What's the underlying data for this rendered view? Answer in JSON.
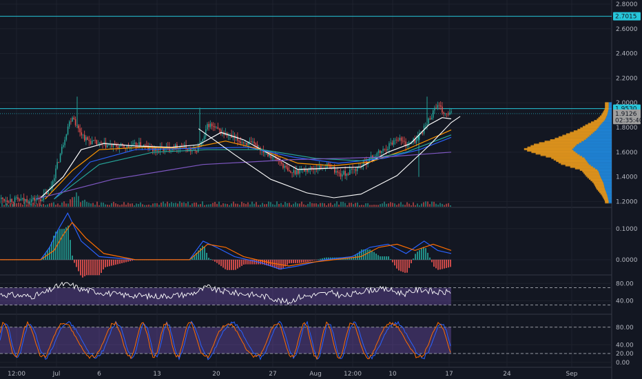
{
  "chart_data": [
    {
      "panel": "price",
      "type": "candlestick",
      "y_ticks": [
        "2.8000",
        "2.6000",
        "2.4000",
        "2.2000",
        "2.0000",
        "1.8000",
        "1.6000",
        "1.4000",
        "1.2000"
      ],
      "ylim": [
        1.18,
        2.8
      ],
      "x_ticks": [
        "12:00",
        "Jul",
        "6",
        "13",
        "20",
        "27",
        "Aug",
        "12:00",
        "10",
        "17",
        "24",
        "Sep"
      ],
      "horizontal_lines": [
        2.7015,
        1.953
      ],
      "price_tags": [
        {
          "label": "2.7015",
          "value": 2.7015,
          "color": "#26c6da"
        },
        {
          "label": "1.9530",
          "value": 1.953,
          "color": "#26c6da"
        },
        {
          "label": "1.9126",
          "value": 1.9126,
          "color": "#9e9e9e"
        },
        {
          "label": "02:35:40",
          "value": 1.86,
          "color": "#9e9e9e"
        }
      ],
      "price_path": [
        [
          0,
          1.22
        ],
        [
          0.05,
          1.21
        ],
        [
          0.09,
          1.22
        ],
        [
          0.11,
          1.3
        ],
        [
          0.13,
          1.55
        ],
        [
          0.15,
          1.82
        ],
        [
          0.16,
          1.9
        ],
        [
          0.17,
          1.8
        ],
        [
          0.19,
          1.7
        ],
        [
          0.22,
          1.66
        ],
        [
          0.25,
          1.65
        ],
        [
          0.28,
          1.64
        ],
        [
          0.31,
          1.66
        ],
        [
          0.34,
          1.62
        ],
        [
          0.37,
          1.63
        ],
        [
          0.4,
          1.65
        ],
        [
          0.43,
          1.6
        ],
        [
          0.45,
          1.7
        ],
        [
          0.46,
          1.83
        ],
        [
          0.48,
          1.78
        ],
        [
          0.5,
          1.74
        ],
        [
          0.53,
          1.69
        ],
        [
          0.56,
          1.66
        ],
        [
          0.59,
          1.6
        ],
        [
          0.62,
          1.52
        ],
        [
          0.64,
          1.43
        ],
        [
          0.66,
          1.45
        ],
        [
          0.7,
          1.47
        ],
        [
          0.73,
          1.49
        ],
        [
          0.75,
          1.42
        ],
        [
          0.77,
          1.43
        ],
        [
          0.79,
          1.47
        ],
        [
          0.82,
          1.55
        ],
        [
          0.85,
          1.62
        ],
        [
          0.88,
          1.72
        ],
        [
          0.9,
          1.66
        ],
        [
          0.92,
          1.7
        ],
        [
          0.94,
          1.8
        ],
        [
          0.955,
          1.9
        ],
        [
          0.965,
          1.98
        ],
        [
          0.975,
          1.95
        ],
        [
          0.985,
          1.9
        ],
        [
          1.0,
          1.91
        ]
      ],
      "moving_averages": [
        {
          "color": "#ffffff",
          "points": [
            [
              0.09,
              1.23
            ],
            [
              0.14,
              1.4
            ],
            [
              0.18,
              1.62
            ],
            [
              0.23,
              1.67
            ],
            [
              0.3,
              1.65
            ],
            [
              0.38,
              1.64
            ],
            [
              0.44,
              1.66
            ],
            [
              0.49,
              1.76
            ],
            [
              0.54,
              1.7
            ],
            [
              0.6,
              1.58
            ],
            [
              0.66,
              1.46
            ],
            [
              0.73,
              1.47
            ],
            [
              0.8,
              1.48
            ],
            [
              0.86,
              1.6
            ],
            [
              0.91,
              1.67
            ],
            [
              0.95,
              1.82
            ],
            [
              0.98,
              1.88
            ],
            [
              1.0,
              1.87
            ]
          ]
        },
        {
          "color": "#ff9800",
          "points": [
            [
              0.1,
              1.22
            ],
            [
              0.16,
              1.45
            ],
            [
              0.22,
              1.62
            ],
            [
              0.32,
              1.64
            ],
            [
              0.42,
              1.63
            ],
            [
              0.5,
              1.69
            ],
            [
              0.58,
              1.62
            ],
            [
              0.66,
              1.51
            ],
            [
              0.74,
              1.49
            ],
            [
              0.82,
              1.52
            ],
            [
              0.9,
              1.62
            ],
            [
              1.0,
              1.78
            ]
          ]
        },
        {
          "color": "#2962ff",
          "points": [
            [
              0.12,
              1.22
            ],
            [
              0.2,
              1.52
            ],
            [
              0.3,
              1.62
            ],
            [
              0.42,
              1.63
            ],
            [
              0.55,
              1.64
            ],
            [
              0.65,
              1.56
            ],
            [
              0.75,
              1.51
            ],
            [
              0.85,
              1.55
            ],
            [
              0.93,
              1.62
            ],
            [
              1.0,
              1.72
            ]
          ]
        },
        {
          "color": "#26a69a",
          "points": [
            [
              0.12,
              1.22
            ],
            [
              0.22,
              1.5
            ],
            [
              0.34,
              1.6
            ],
            [
              0.46,
              1.62
            ],
            [
              0.58,
              1.62
            ],
            [
              0.7,
              1.55
            ],
            [
              0.8,
              1.53
            ],
            [
              0.9,
              1.6
            ],
            [
              1.0,
              1.74
            ]
          ]
        },
        {
          "color": "#7e57c2",
          "points": [
            [
              0.08,
              1.22
            ],
            [
              0.25,
              1.38
            ],
            [
              0.45,
              1.5
            ],
            [
              0.65,
              1.54
            ],
            [
              0.85,
              1.56
            ],
            [
              1.0,
              1.6
            ]
          ]
        }
      ],
      "cup_curve": [
        [
          0.44,
          1.79
        ],
        [
          0.52,
          1.58
        ],
        [
          0.6,
          1.38
        ],
        [
          0.68,
          1.27
        ],
        [
          0.74,
          1.23
        ],
        [
          0.8,
          1.26
        ],
        [
          0.88,
          1.41
        ],
        [
          0.95,
          1.65
        ],
        [
          1.0,
          1.84
        ],
        [
          1.02,
          1.89
        ]
      ],
      "volume_profile": [
        [
          1.2,
          8
        ],
        [
          1.25,
          12
        ],
        [
          1.3,
          18
        ],
        [
          1.35,
          22
        ],
        [
          1.4,
          30
        ],
        [
          1.45,
          36
        ],
        [
          1.5,
          60
        ],
        [
          1.55,
          72
        ],
        [
          1.58,
          88
        ],
        [
          1.62,
          105
        ],
        [
          1.66,
          92
        ],
        [
          1.7,
          70
        ],
        [
          1.74,
          55
        ],
        [
          1.78,
          40
        ],
        [
          1.82,
          30
        ],
        [
          1.86,
          18
        ],
        [
          1.9,
          12
        ],
        [
          1.95,
          8
        ]
      ]
    },
    {
      "panel": "macd",
      "type": "line",
      "y_ticks": [
        "0.1000",
        "0.0000"
      ],
      "ylim": [
        -0.04,
        0.155
      ],
      "series": [
        {
          "color": "#2962ff",
          "points": [
            [
              0,
              0.0
            ],
            [
              0.09,
              0.0
            ],
            [
              0.11,
              0.04
            ],
            [
              0.13,
              0.1
            ],
            [
              0.15,
              0.15
            ],
            [
              0.18,
              0.06
            ],
            [
              0.22,
              0.01
            ],
            [
              0.3,
              0.0
            ],
            [
              0.42,
              0.0
            ],
            [
              0.45,
              0.06
            ],
            [
              0.48,
              0.04
            ],
            [
              0.52,
              0.01
            ],
            [
              0.58,
              -0.01
            ],
            [
              0.62,
              -0.03
            ],
            [
              0.66,
              -0.02
            ],
            [
              0.72,
              0.0
            ],
            [
              0.78,
              0.01
            ],
            [
              0.82,
              0.04
            ],
            [
              0.86,
              0.05
            ],
            [
              0.9,
              0.02
            ],
            [
              0.94,
              0.06
            ],
            [
              0.97,
              0.03
            ],
            [
              1.0,
              0.02
            ]
          ]
        },
        {
          "color": "#ff6d00",
          "points": [
            [
              0,
              0.0
            ],
            [
              0.09,
              0.0
            ],
            [
              0.12,
              0.03
            ],
            [
              0.14,
              0.08
            ],
            [
              0.16,
              0.12
            ],
            [
              0.19,
              0.07
            ],
            [
              0.23,
              0.02
            ],
            [
              0.3,
              0.0
            ],
            [
              0.42,
              0.0
            ],
            [
              0.46,
              0.05
            ],
            [
              0.5,
              0.04
            ],
            [
              0.54,
              0.01
            ],
            [
              0.6,
              -0.01
            ],
            [
              0.64,
              -0.02
            ],
            [
              0.68,
              -0.01
            ],
            [
              0.74,
              0.0
            ],
            [
              0.8,
              0.01
            ],
            [
              0.84,
              0.04
            ],
            [
              0.88,
              0.05
            ],
            [
              0.92,
              0.03
            ],
            [
              0.96,
              0.05
            ],
            [
              1.0,
              0.03
            ]
          ]
        }
      ]
    },
    {
      "panel": "rsi",
      "type": "line",
      "y_ticks": [
        "80.00",
        "40.00"
      ],
      "ylim": [
        15,
        90
      ],
      "band": [
        30,
        70
      ],
      "series": [
        {
          "color": "#ffffff",
          "points": [
            [
              0,
              55
            ],
            [
              0.04,
              52
            ],
            [
              0.07,
              50
            ],
            [
              0.1,
              58
            ],
            [
              0.12,
              70
            ],
            [
              0.14,
              78
            ],
            [
              0.16,
              76
            ],
            [
              0.18,
              66
            ],
            [
              0.22,
              60
            ],
            [
              0.26,
              54
            ],
            [
              0.3,
              52
            ],
            [
              0.34,
              50
            ],
            [
              0.38,
              52
            ],
            [
              0.42,
              55
            ],
            [
              0.44,
              62
            ],
            [
              0.46,
              72
            ],
            [
              0.48,
              64
            ],
            [
              0.52,
              58
            ],
            [
              0.56,
              54
            ],
            [
              0.6,
              48
            ],
            [
              0.62,
              40
            ],
            [
              0.64,
              36
            ],
            [
              0.66,
              48
            ],
            [
              0.7,
              54
            ],
            [
              0.74,
              58
            ],
            [
              0.76,
              50
            ],
            [
              0.78,
              54
            ],
            [
              0.8,
              62
            ],
            [
              0.83,
              66
            ],
            [
              0.86,
              66
            ],
            [
              0.88,
              60
            ],
            [
              0.9,
              56
            ],
            [
              0.92,
              64
            ],
            [
              0.94,
              66
            ],
            [
              0.96,
              60
            ],
            [
              0.98,
              58
            ],
            [
              1.0,
              62
            ]
          ]
        }
      ]
    },
    {
      "panel": "stoch",
      "type": "line",
      "y_ticks": [
        "80.00",
        "40.00",
        "20.00",
        "0.00"
      ],
      "ylim": [
        -5,
        100
      ],
      "band": [
        20,
        80
      ],
      "series": [
        {
          "color": "#2962ff",
          "phase": 0
        },
        {
          "color": "#ff6d00",
          "phase": 0.6
        }
      ]
    }
  ]
}
